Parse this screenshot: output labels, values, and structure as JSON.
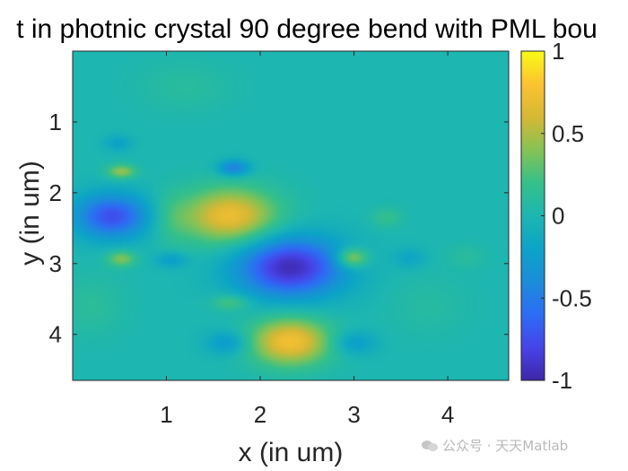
{
  "chart_data": {
    "type": "heatmap",
    "title": "t in photnic crystal 90 degree bend with PML bou",
    "xlabel": "x (in um)",
    "ylabel": "y (in um)",
    "xlim": [
      0.0,
      4.65
    ],
    "ylim": [
      0.0,
      4.65
    ],
    "y_reversed": true,
    "x_ticks": [
      1,
      2,
      3,
      4
    ],
    "y_ticks": [
      1,
      2,
      3,
      4
    ],
    "clim": [
      -1,
      1
    ],
    "colorbar_ticks": [
      1,
      0.5,
      0,
      -0.5,
      -1
    ],
    "colorbar_tick_labels": [
      "1",
      "0.5",
      "0",
      "-0.5",
      "-1"
    ],
    "colormap": "parula",
    "colormap_stops": [
      "#3e26a8",
      "#4744e8",
      "#2d6cf5",
      "#1b8dd9",
      "#0ca3c8",
      "#1db6b1",
      "#35c08a",
      "#86c255",
      "#d6b834",
      "#fdc232",
      "#f9fb15"
    ],
    "background_value": 0,
    "field_blobs": [
      {
        "x": 0.42,
        "y": 2.33,
        "sx": 0.28,
        "sy": 0.22,
        "v": -0.75
      },
      {
        "x": 1.68,
        "y": 2.33,
        "sx": 0.36,
        "sy": 0.28,
        "v": 0.72
      },
      {
        "x": 2.32,
        "y": 3.05,
        "sx": 0.4,
        "sy": 0.3,
        "v": -0.95
      },
      {
        "x": 2.32,
        "y": 4.1,
        "sx": 0.3,
        "sy": 0.24,
        "v": 0.75
      },
      {
        "x": 0.52,
        "y": 1.7,
        "sx": 0.11,
        "sy": 0.07,
        "v": 0.45
      },
      {
        "x": 0.52,
        "y": 2.93,
        "sx": 0.11,
        "sy": 0.08,
        "v": 0.4
      },
      {
        "x": 1.72,
        "y": 1.65,
        "sx": 0.12,
        "sy": 0.08,
        "v": -0.5
      },
      {
        "x": 1.68,
        "y": 3.55,
        "sx": 0.14,
        "sy": 0.08,
        "v": 0.28
      },
      {
        "x": 2.98,
        "y": 2.92,
        "sx": 0.12,
        "sy": 0.1,
        "v": 0.55
      },
      {
        "x": 1.05,
        "y": 2.35,
        "sx": 0.14,
        "sy": 0.26,
        "v": 0.15
      },
      {
        "x": 1.05,
        "y": 2.95,
        "sx": 0.12,
        "sy": 0.08,
        "v": -0.25
      },
      {
        "x": 0.48,
        "y": 1.3,
        "sx": 0.1,
        "sy": 0.08,
        "v": -0.22
      },
      {
        "x": 1.65,
        "y": 4.12,
        "sx": 0.16,
        "sy": 0.12,
        "v": -0.3
      },
      {
        "x": 3.0,
        "y": 4.12,
        "sx": 0.16,
        "sy": 0.12,
        "v": -0.28
      },
      {
        "x": 3.35,
        "y": 2.35,
        "sx": 0.12,
        "sy": 0.1,
        "v": 0.18
      },
      {
        "x": 3.6,
        "y": 2.92,
        "sx": 0.12,
        "sy": 0.1,
        "v": -0.18
      },
      {
        "x": 1.2,
        "y": 0.5,
        "sx": 0.35,
        "sy": 0.25,
        "v": 0.1
      },
      {
        "x": 3.8,
        "y": 3.6,
        "sx": 0.3,
        "sy": 0.3,
        "v": 0.08
      },
      {
        "x": 0.2,
        "y": 3.6,
        "sx": 0.25,
        "sy": 0.3,
        "v": 0.12
      },
      {
        "x": 4.2,
        "y": 2.9,
        "sx": 0.15,
        "sy": 0.12,
        "v": 0.1
      }
    ]
  },
  "watermark": {
    "text": "公众号 · 天天Matlab",
    "icon": "wechat-icon"
  }
}
